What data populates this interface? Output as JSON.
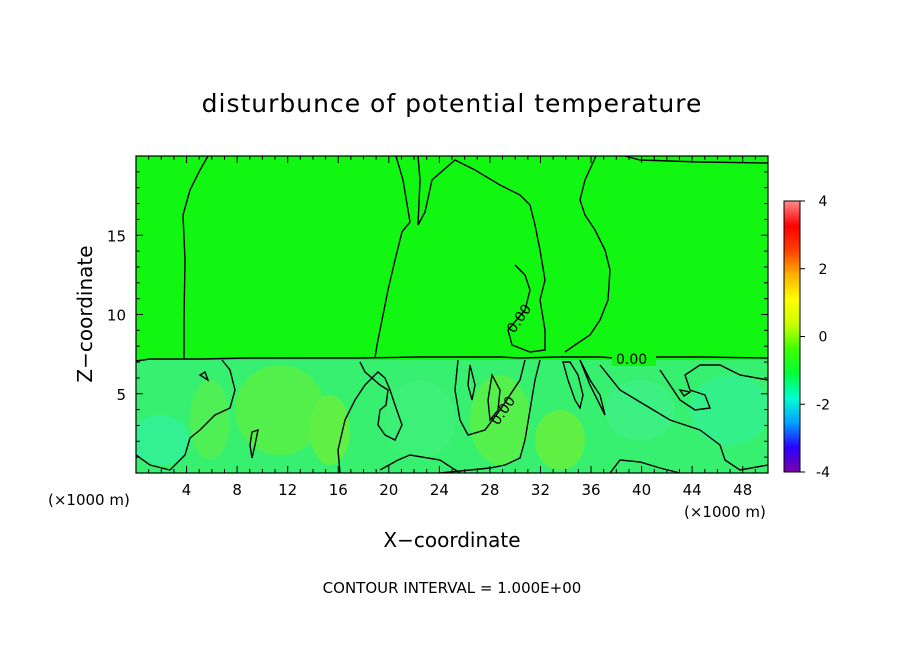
{
  "chart_data": {
    "type": "heatmap",
    "title": "disturbunce of potential temperature",
    "xlabel": "X−coordinate",
    "ylabel": "Z−coordinate",
    "x_unit_left": "(×1000 m)",
    "x_unit_right": "(×1000 m)",
    "xlim": [
      0,
      50
    ],
    "ylim": [
      0,
      20
    ],
    "x_ticks": [
      4,
      8,
      12,
      16,
      20,
      24,
      28,
      32,
      36,
      40,
      44,
      48
    ],
    "y_ticks": [
      5,
      10,
      15
    ],
    "contour_labels": [
      {
        "text": "0.00",
        "x": 30.5,
        "y": 9.5,
        "angle": -55
      },
      {
        "text": "0.00",
        "x": 30.0,
        "y": 3.9,
        "angle": -55
      },
      {
        "text": "0.00",
        "x": 39.5,
        "y": 7.1,
        "angle": 0
      }
    ],
    "footer": "CONTOUR INTERVAL = 1.000E+00",
    "colorbar": {
      "range": [
        -4,
        4
      ],
      "ticks": [
        -4,
        -2,
        0,
        2,
        4
      ],
      "colors": [
        "#7a00a8",
        "#2a00ff",
        "#00a0ff",
        "#00ffd0",
        "#00ff3a",
        "#40ff00",
        "#c8ff00",
        "#ffff00",
        "#ffb000",
        "#ff4000",
        "#ff0000",
        "#ff8c8c"
      ]
    },
    "field": {
      "upper_value": 0.0,
      "lower_value_typical": -0.3,
      "boundary_height": 7.2
    }
  }
}
